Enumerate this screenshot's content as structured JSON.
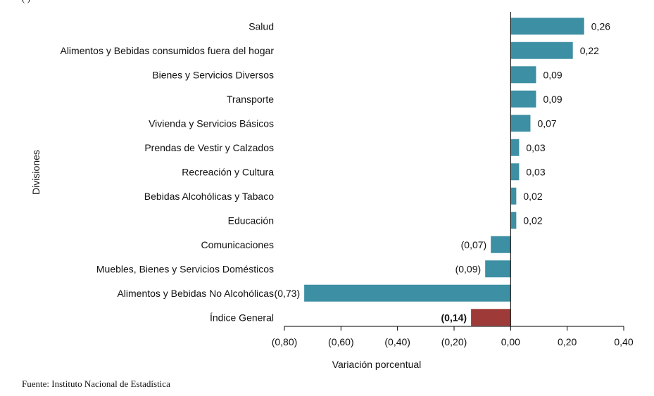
{
  "header_fragment": "(         )",
  "source": "Fuente: Instituto Nacional de Estadística",
  "colors": {
    "positive": "#3d8fa3",
    "negative": "#3d8fa3",
    "total": "#9e3b38",
    "axis": "#000000"
  },
  "chart_data": {
    "type": "bar",
    "orientation": "horizontal",
    "xlabel": "Variación porcentual",
    "ylabel": "Divisiones",
    "xlim": [
      -0.8,
      0.4
    ],
    "xticks": [
      -0.8,
      -0.6,
      -0.4,
      -0.2,
      0.0,
      0.2,
      0.4
    ],
    "xtick_labels": [
      "(0,80)",
      "(0,60)",
      "(0,40)",
      "(0,20)",
      "0,00",
      "0,20",
      "0,40"
    ],
    "categories": [
      "Salud",
      "Alimentos y Bebidas consumidos fuera del hogar",
      "Bienes y Servicios Diversos",
      "Transporte",
      "Vivienda y Servicios Básicos",
      "Prendas de Vestir y Calzados",
      "Recreación y Cultura",
      "Bebidas Alcohólicas y Tabaco",
      "Educación",
      "Comunicaciones",
      "Muebles, Bienes y Servicios Domésticos",
      "Alimentos y Bebidas No Alcohólicas",
      "Índice General"
    ],
    "values": [
      0.26,
      0.22,
      0.09,
      0.09,
      0.07,
      0.03,
      0.03,
      0.02,
      0.02,
      -0.07,
      -0.09,
      -0.73,
      -0.14
    ],
    "value_labels": [
      "0,26",
      "0,22",
      "0,09",
      "0,09",
      "0,07",
      "0,03",
      "0,03",
      "0,02",
      "0,02",
      "(0,07)",
      "(0,09)",
      "(0,73)",
      "(0,14)"
    ],
    "highlight_index": 12,
    "grid": false
  }
}
